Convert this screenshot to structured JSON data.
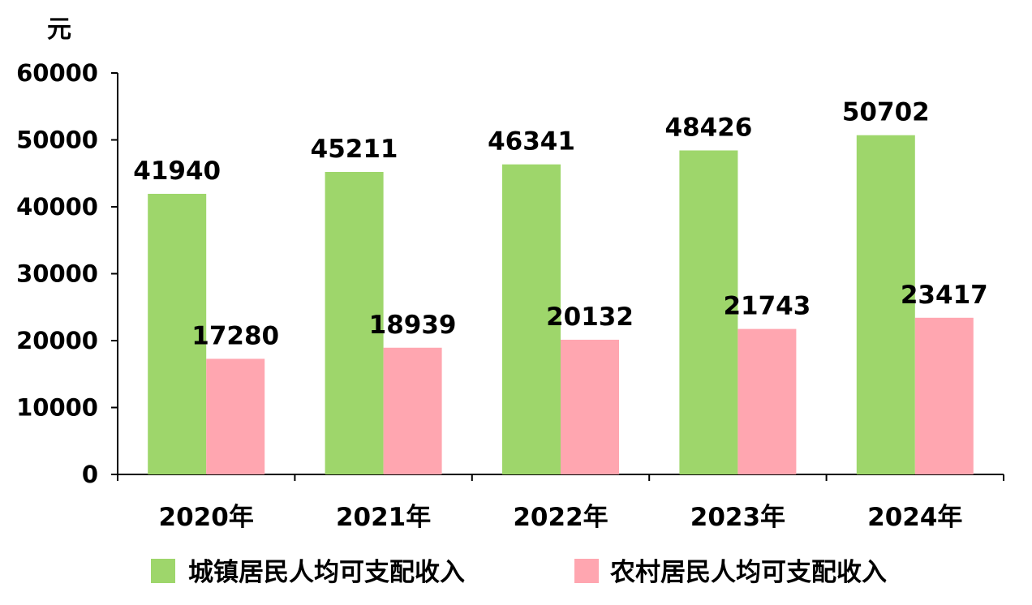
{
  "chart_data": {
    "type": "bar",
    "unit_label": "元",
    "categories": [
      "2020年",
      "2021年",
      "2022年",
      "2023年",
      "2024年"
    ],
    "series": [
      {
        "name": "城镇居民人均可支配收入",
        "color": "#9ed66b",
        "values": [
          41940,
          45211,
          46341,
          48426,
          50702
        ]
      },
      {
        "name": "农村居民人均可支配收入",
        "color": "#ffa6b0",
        "values": [
          17280,
          18939,
          20132,
          21743,
          23417
        ]
      }
    ],
    "ylim": [
      0,
      60000
    ],
    "yticks": [
      "0",
      "10000",
      "20000",
      "30000",
      "40000",
      "50000",
      "60000"
    ],
    "grid": false,
    "legend": "bottom"
  }
}
